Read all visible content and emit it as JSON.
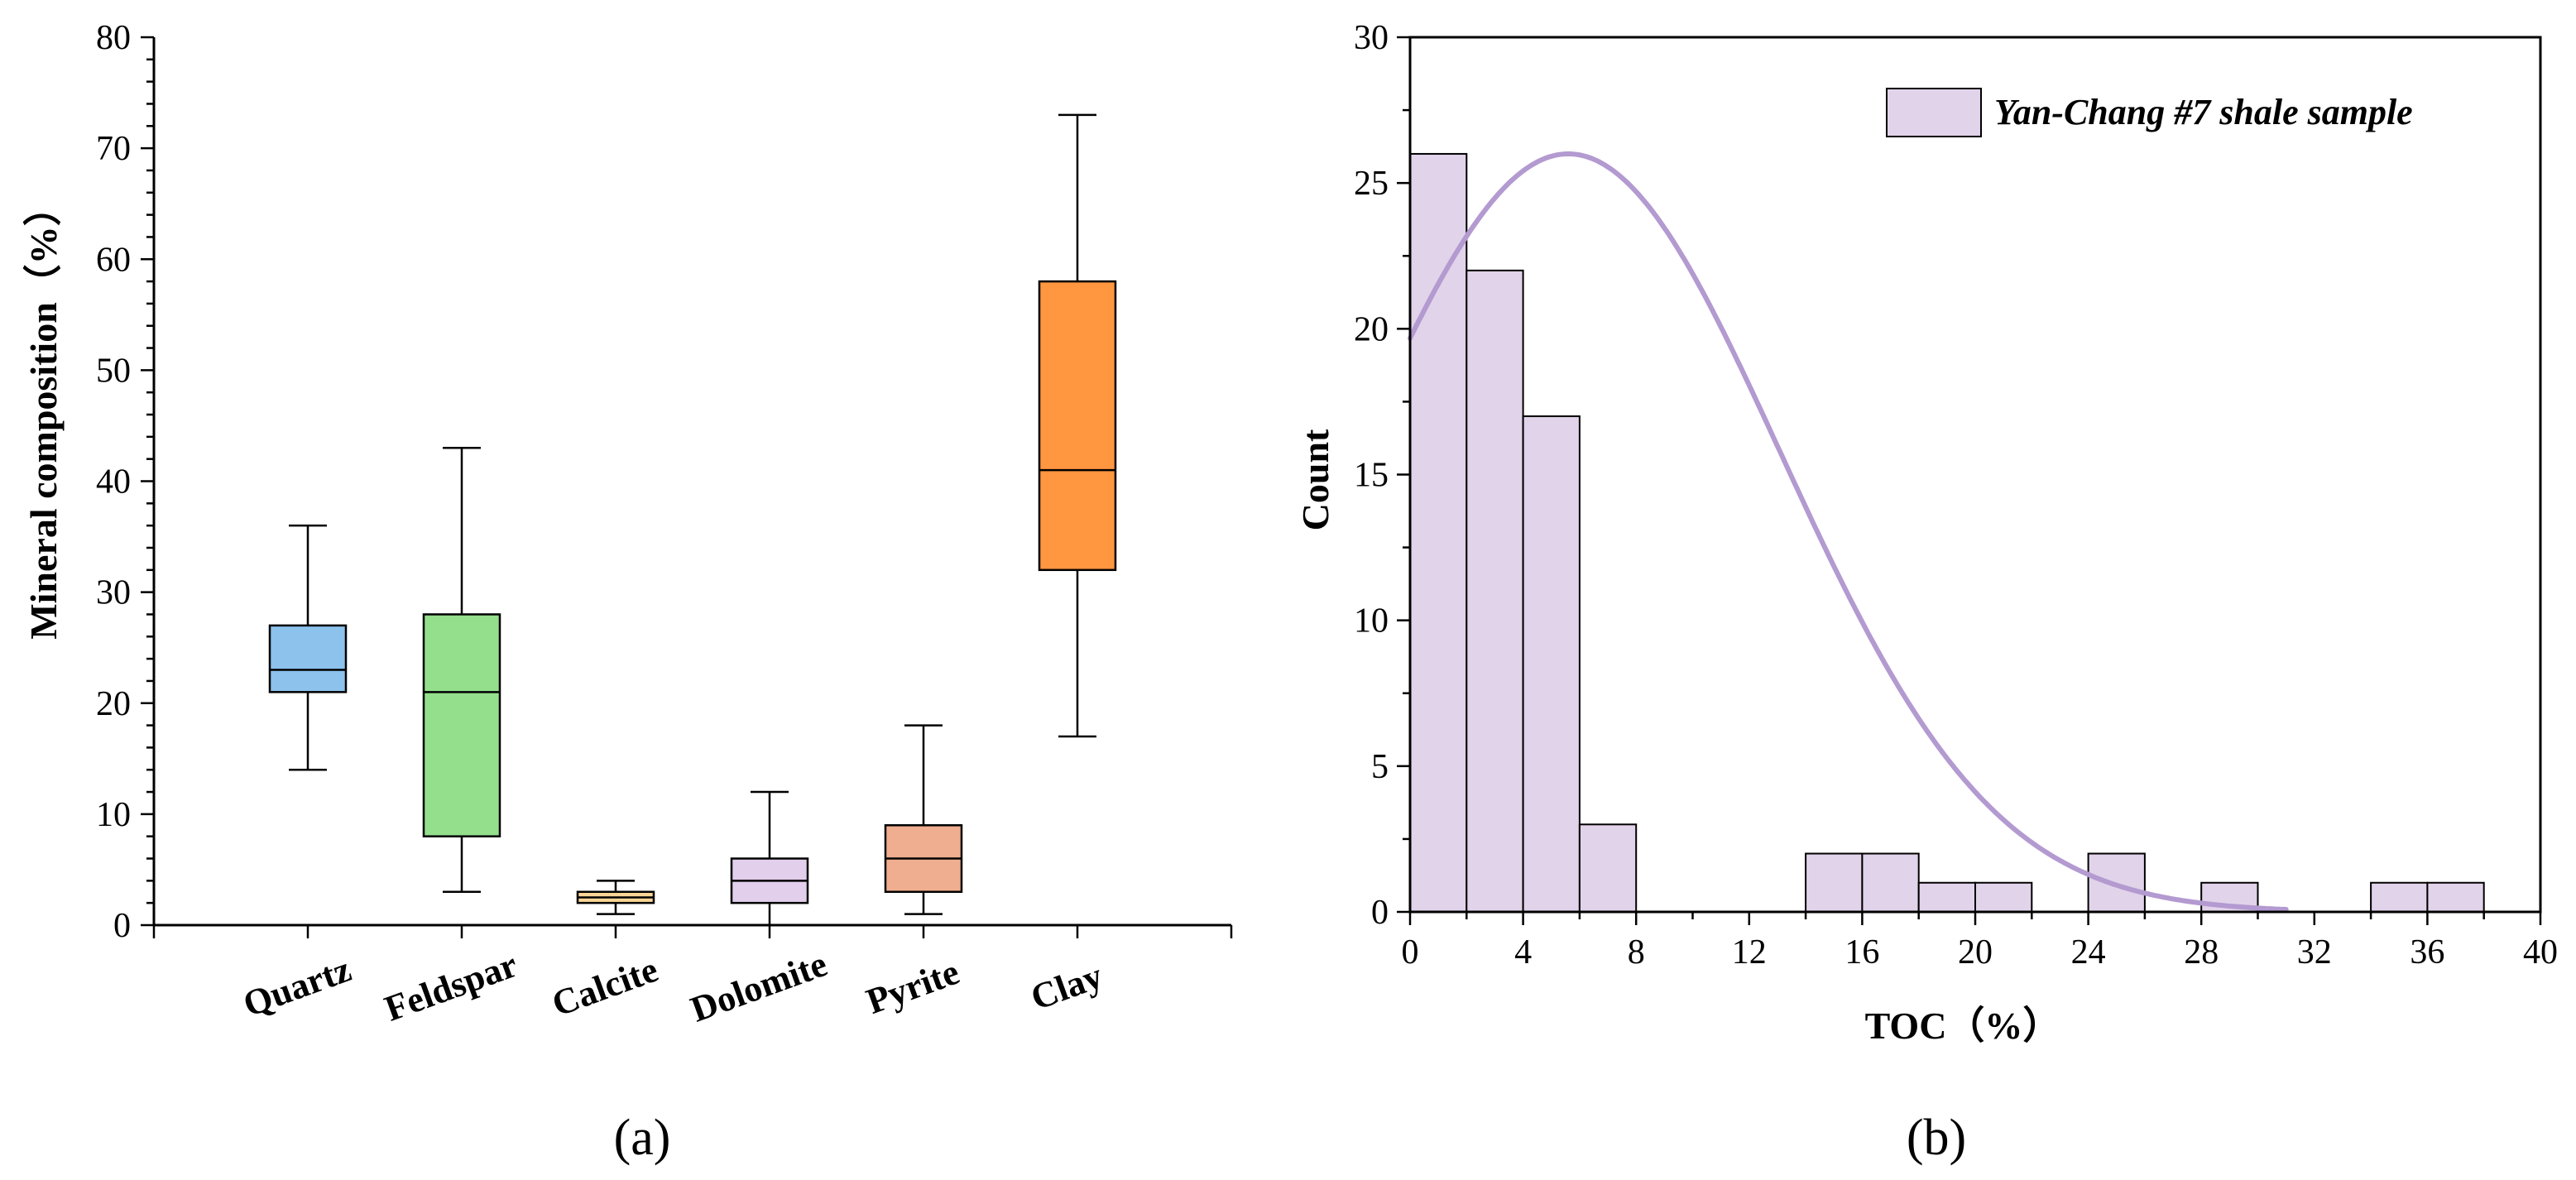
{
  "panel_labels": {
    "a": "(a)",
    "b": "(b)"
  },
  "chart_data": [
    {
      "type": "box",
      "ylabel": "Mineral composition（%）",
      "ylim": [
        0,
        80
      ],
      "yticks": [
        0,
        10,
        20,
        30,
        40,
        50,
        60,
        70,
        80
      ],
      "categories": [
        "Quartz",
        "Feldspar",
        "Calcite",
        "Dolomite",
        "Pyrite",
        "Clay"
      ],
      "boxes": [
        {
          "name": "Quartz",
          "min": 14,
          "q1": 21,
          "median": 23,
          "q3": 27,
          "max": 36,
          "color": "#8CC2EC"
        },
        {
          "name": "Feldspar",
          "min": 3,
          "q1": 8,
          "median": 21,
          "q3": 28,
          "max": 43,
          "color": "#94DF8C"
        },
        {
          "name": "Calcite",
          "min": 1,
          "q1": 2,
          "median": 2.5,
          "q3": 3,
          "max": 4,
          "color": "#F8D695"
        },
        {
          "name": "Dolomite",
          "min": 0,
          "q1": 2,
          "median": 4,
          "q3": 6,
          "max": 12,
          "color": "#E2CFEB"
        },
        {
          "name": "Pyrite",
          "min": 1,
          "q1": 3,
          "median": 6,
          "q3": 9,
          "max": 18,
          "color": "#EFAE8F"
        },
        {
          "name": "Clay",
          "min": 17,
          "q1": 32,
          "median": 41,
          "q3": 58,
          "max": 73,
          "color": "#FF9640"
        }
      ]
    },
    {
      "type": "histogram",
      "xlabel": "TOC（%）",
      "ylabel": "Count",
      "xlim": [
        0,
        40
      ],
      "ylim": [
        0,
        30
      ],
      "xticks": [
        0,
        4,
        8,
        12,
        16,
        20,
        24,
        28,
        32,
        36,
        40
      ],
      "yticks": [
        0,
        5,
        10,
        15,
        20,
        25,
        30
      ],
      "bin_width": 2,
      "bins": [
        {
          "start": 0,
          "count": 26
        },
        {
          "start": 2,
          "count": 22
        },
        {
          "start": 4,
          "count": 17
        },
        {
          "start": 6,
          "count": 3
        },
        {
          "start": 14,
          "count": 2
        },
        {
          "start": 16,
          "count": 2
        },
        {
          "start": 18,
          "count": 1
        },
        {
          "start": 20,
          "count": 1
        },
        {
          "start": 24,
          "count": 2
        },
        {
          "start": 28,
          "count": 1
        },
        {
          "start": 34,
          "count": 1
        },
        {
          "start": 36,
          "count": 1
        }
      ],
      "fit_curve": {
        "type": "normal",
        "peak_x": 5.6,
        "peak_y": 26,
        "sigma": 7.5,
        "x_range": [
          0,
          31
        ]
      },
      "legend": {
        "label": "Yan-Chang #7 shale sample",
        "position": "top-right"
      },
      "bar_color": "#E1D3E9",
      "curve_color": "#B39AD0"
    }
  ]
}
